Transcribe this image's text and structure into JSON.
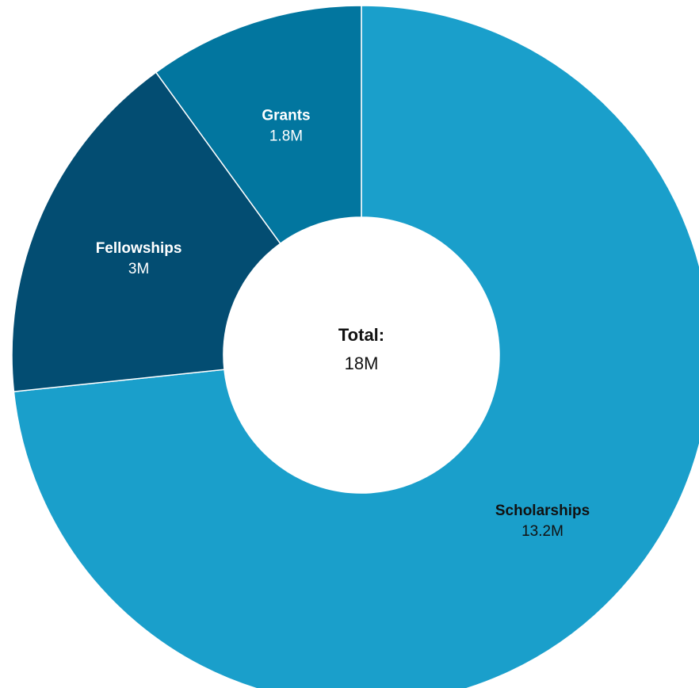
{
  "chart_data": {
    "type": "pie",
    "donut": true,
    "legend": "none",
    "slices": [
      {
        "name": "Scholarships",
        "value": 13.2,
        "label": "13.2M",
        "color": "#1a9fcb",
        "label_color": "#111111"
      },
      {
        "name": "Fellowships",
        "value": 3,
        "label": "3M",
        "color": "#034d72",
        "label_color": "#ffffff"
      },
      {
        "name": "Grants",
        "value": 1.8,
        "label": "1.8M",
        "color": "#02769f",
        "label_color": "#ffffff"
      }
    ],
    "center_title": "Total:",
    "center_value": "18M"
  }
}
